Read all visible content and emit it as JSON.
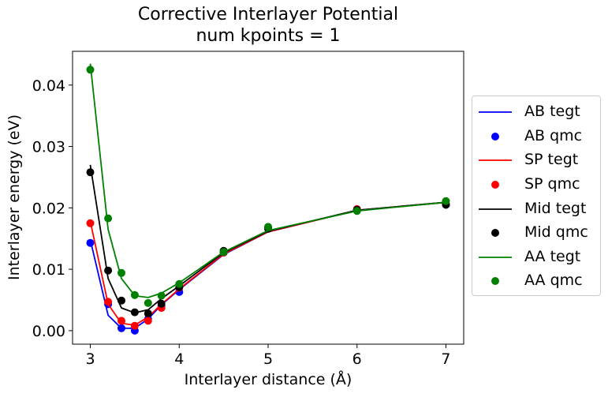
{
  "chart_data": {
    "type": "line",
    "title": "Corrective Interlayer Potential",
    "subtitle": "num kpoints = 1",
    "xlabel": "Interlayer distance (Å)",
    "ylabel": "Interlayer energy (eV)",
    "xlim": [
      2.8,
      7.2
    ],
    "ylim": [
      -0.0022,
      0.0455
    ],
    "xticks": [
      "3",
      "4",
      "5",
      "6",
      "7"
    ],
    "yticks": [
      "0.00",
      "0.01",
      "0.02",
      "0.03",
      "0.04"
    ],
    "grid": false,
    "legend": "right, outside",
    "x": [
      3.0,
      3.2,
      3.35,
      3.5,
      3.65,
      3.8,
      4.0,
      4.5,
      5.0,
      6.0,
      7.0
    ],
    "series": [
      {
        "name": "AB tegt",
        "kind": "line",
        "color": "#0000ff",
        "values": [
          0.0148,
          0.0025,
          0.0004,
          0.0004,
          0.0019,
          0.0042,
          0.0067,
          0.0124,
          0.0161,
          0.0196,
          0.0209
        ]
      },
      {
        "name": "AB qmc",
        "kind": "scatter",
        "color": "#0000ff",
        "values": [
          0.0143,
          0.0043,
          0.0004,
          0.0,
          0.0019,
          0.004,
          0.0063,
          0.0127,
          0.0167,
          0.0197,
          0.0205
        ]
      },
      {
        "name": "SP tegt",
        "kind": "line",
        "color": "#ff0000",
        "values": [
          0.0178,
          0.0043,
          0.0012,
          0.0009,
          0.0022,
          0.0043,
          0.0068,
          0.0125,
          0.0161,
          0.0196,
          0.0209
        ]
      },
      {
        "name": "SP qmc",
        "kind": "scatter",
        "color": "#ff0000",
        "values": [
          0.0175,
          0.0047,
          0.0016,
          0.0008,
          0.0016,
          0.0037,
          0.007,
          0.0127,
          0.0168,
          0.0198,
          0.0206
        ]
      },
      {
        "name": "Mid tegt",
        "kind": "line",
        "color": "#000000",
        "values": [
          0.027,
          0.0085,
          0.0037,
          0.0029,
          0.0034,
          0.0052,
          0.0073,
          0.0127,
          0.0162,
          0.0196,
          0.0209
        ]
      },
      {
        "name": "Mid qmc",
        "kind": "scatter",
        "color": "#000000",
        "values": [
          0.0258,
          0.0098,
          0.0049,
          0.003,
          0.0028,
          0.0044,
          0.0071,
          0.013,
          0.0166,
          0.0197,
          0.0205
        ]
      },
      {
        "name": "AA tegt",
        "kind": "line",
        "color": "#008000",
        "values": [
          0.0435,
          0.0165,
          0.0085,
          0.0057,
          0.0054,
          0.0061,
          0.0078,
          0.0128,
          0.0163,
          0.0195,
          0.0209
        ]
      },
      {
        "name": "AA qmc",
        "kind": "scatter",
        "color": "#008000",
        "values": [
          0.0425,
          0.0183,
          0.0094,
          0.0058,
          0.0045,
          0.0057,
          0.0076,
          0.0128,
          0.0169,
          0.0195,
          0.0211
        ]
      }
    ]
  }
}
